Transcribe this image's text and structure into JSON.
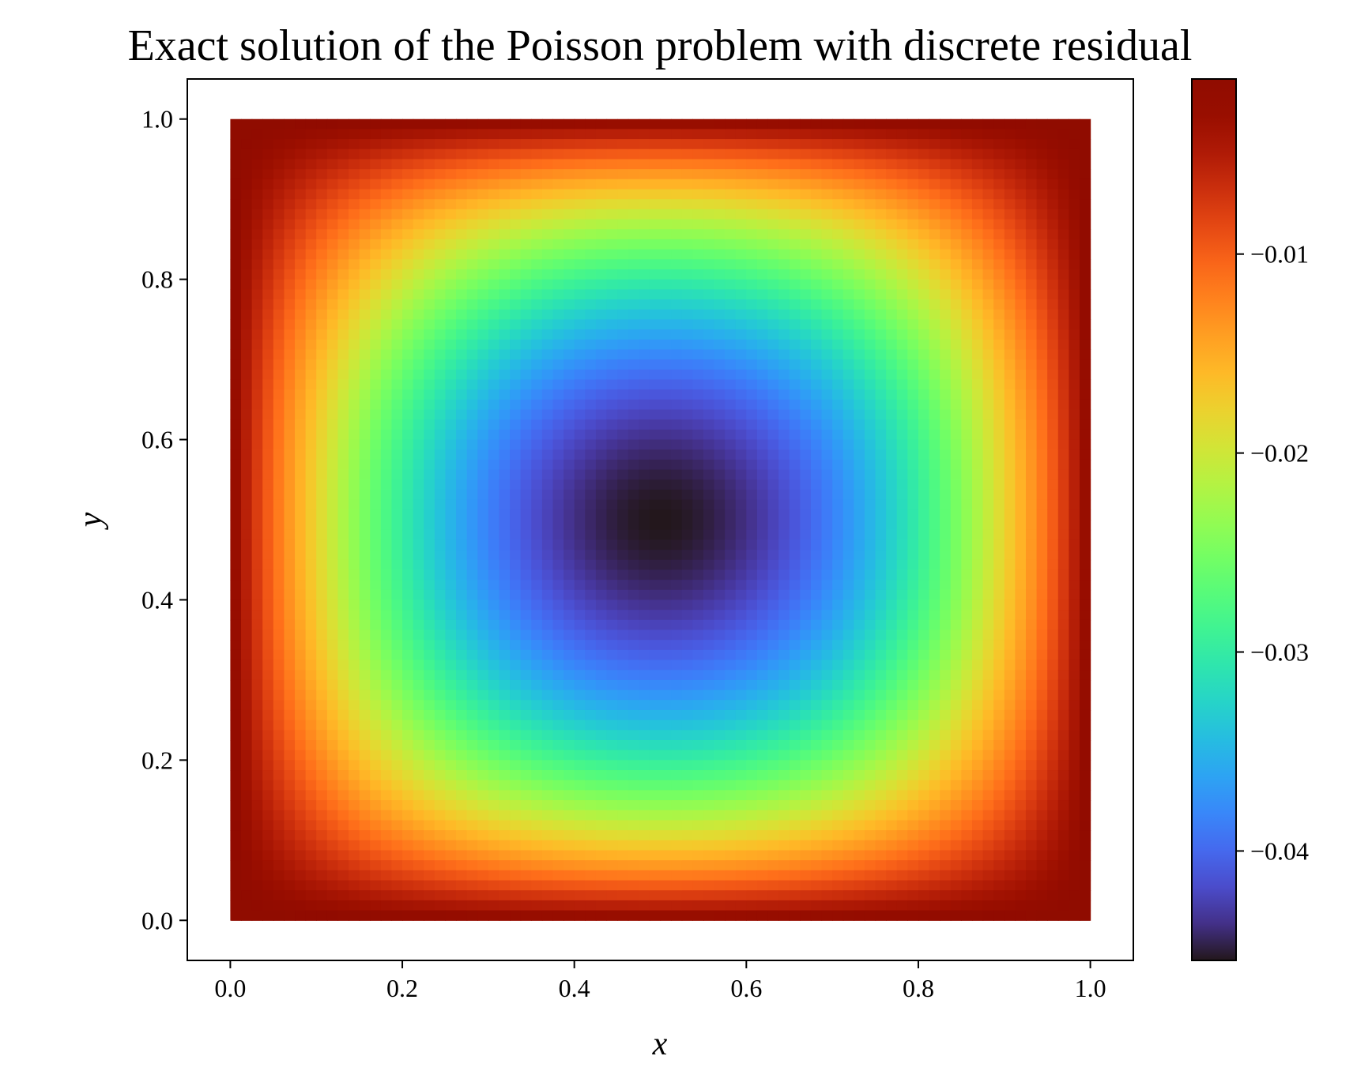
{
  "chart_data": {
    "type": "heatmap",
    "title": "Exact solution of the Poisson problem with discrete residual",
    "xlabel": "x",
    "ylabel": "y",
    "xlim": [
      -0.05,
      1.05
    ],
    "ylim": [
      -0.05,
      1.05
    ],
    "x_ticks": [
      "0.0",
      "0.2",
      "0.4",
      "0.6",
      "0.8",
      "1.0"
    ],
    "y_ticks": [
      "0.0",
      "0.2",
      "0.4",
      "0.6",
      "0.8",
      "1.0"
    ],
    "data_extent": {
      "x": [
        0.0,
        1.0
      ],
      "y": [
        0.0,
        1.0
      ]
    },
    "colormap": "turbo",
    "colorbar": {
      "vmin": -0.0455,
      "vmax": -0.0012,
      "ticks": [
        -0.01,
        -0.02,
        -0.03,
        -0.04
      ],
      "tick_labels": [
        "−0.01",
        "−0.02",
        "−0.03",
        "−0.04"
      ]
    },
    "field": {
      "description_values": "u(x,y) minimum near (0.5, 0.5)",
      "min_value": -0.0455,
      "min_location": [
        0.5,
        0.5
      ],
      "boundary_value": -0.0012
    },
    "grid": false
  }
}
